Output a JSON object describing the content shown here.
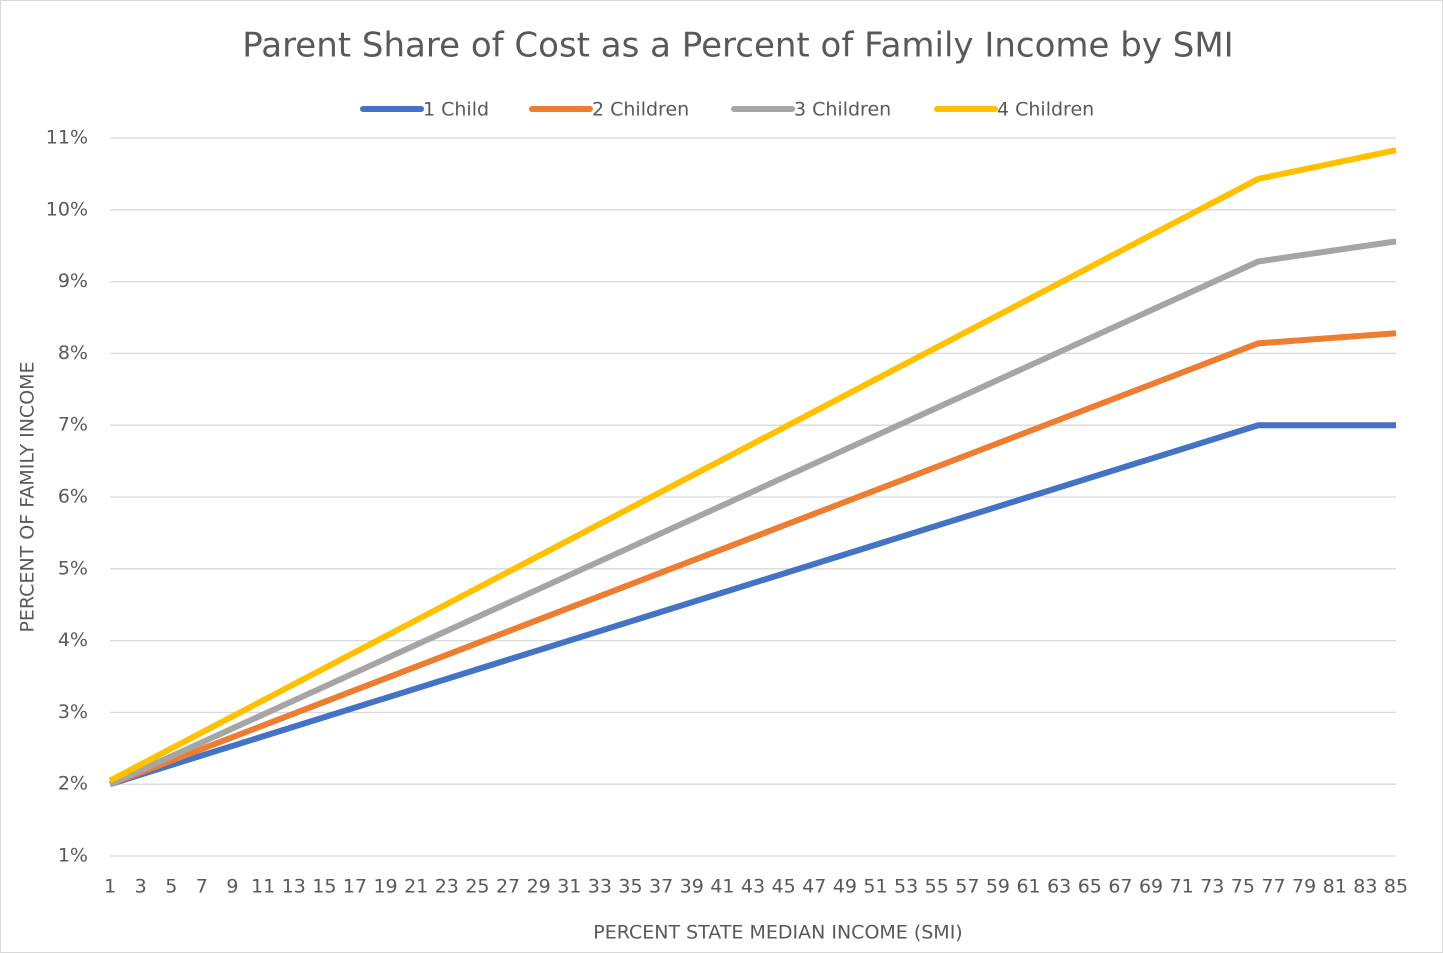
{
  "chart_data": {
    "type": "line",
    "title": "Parent Share of Cost as a Percent of Family Income by SMI",
    "x_label": "PERCENT STATE MEDIAN INCOME (SMI)",
    "y_label": "PERCENT OF FAMILY INCOME",
    "x": [
      1,
      76,
      85
    ],
    "series": [
      {
        "name": "1 Child",
        "color": "#4472c4",
        "values": [
          2.0,
          7.0,
          7.0
        ]
      },
      {
        "name": "2 Children",
        "color": "#ed7d31",
        "values": [
          2.0,
          8.14,
          8.28
        ]
      },
      {
        "name": "3 Children",
        "color": "#a5a5a5",
        "values": [
          2.0,
          9.28,
          9.56
        ]
      },
      {
        "name": "4 Children",
        "color": "#ffc000",
        "values": [
          2.05,
          10.43,
          10.83
        ]
      }
    ],
    "xlim": [
      1,
      85
    ],
    "xticks": [
      1,
      3,
      5,
      7,
      9,
      11,
      13,
      15,
      17,
      19,
      21,
      23,
      25,
      27,
      29,
      31,
      33,
      35,
      37,
      39,
      41,
      43,
      45,
      47,
      49,
      51,
      53,
      55,
      57,
      59,
      61,
      63,
      65,
      67,
      69,
      71,
      73,
      75,
      77,
      79,
      81,
      83,
      85
    ],
    "ylim": [
      1,
      11
    ],
    "yticks": [
      {
        "value": 1,
        "label": "1%"
      },
      {
        "value": 2,
        "label": "2%"
      },
      {
        "value": 3,
        "label": "3%"
      },
      {
        "value": 4,
        "label": "4%"
      },
      {
        "value": 5,
        "label": "5%"
      },
      {
        "value": 6,
        "label": "6%"
      },
      {
        "value": 7,
        "label": "7%"
      },
      {
        "value": 8,
        "label": "8%"
      },
      {
        "value": 9,
        "label": "9%"
      },
      {
        "value": 10,
        "label": "10%"
      },
      {
        "value": 11,
        "label": "11%"
      }
    ],
    "grid": true,
    "legend": "top"
  }
}
